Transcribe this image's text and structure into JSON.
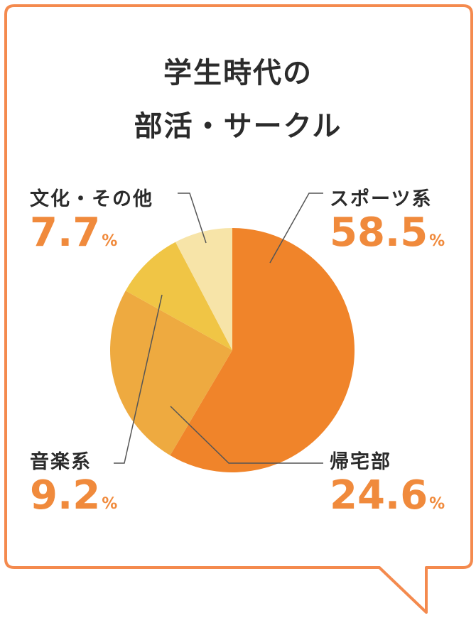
{
  "title_line1": "学生時代の",
  "title_line2": "部活・サークル",
  "percent_sign": "%",
  "colors": {
    "frame": "#f48a4e",
    "value_text": "#f08a3c",
    "leader": "#555555"
  },
  "chart_data": {
    "type": "pie",
    "title": "学生時代の 部活・サークル",
    "start_angle_deg": 0,
    "direction": "clockwise",
    "slices": [
      {
        "label": "スポーツ系",
        "value": 58.5,
        "display": "58.5",
        "color": "#f0842a"
      },
      {
        "label": "帰宅部",
        "value": 24.6,
        "display": "24.6",
        "color": "#eeaa40"
      },
      {
        "label": "音楽系",
        "value": 9.2,
        "display": "9.2",
        "color": "#f0c545"
      },
      {
        "label": "文化・その他",
        "value": 7.7,
        "display": "7.7",
        "color": "#f7e4a8"
      }
    ]
  }
}
